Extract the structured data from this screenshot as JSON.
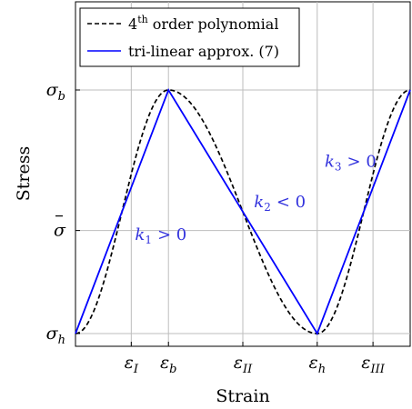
{
  "chart_data": {
    "type": "line",
    "xlabel": "Strain",
    "ylabel": "Stress",
    "grid": true,
    "legend_position": "top-left",
    "x_ticks": [
      {
        "x": 1.5,
        "label": "ε",
        "sub": "I"
      },
      {
        "x": 2.5,
        "label": "ε",
        "sub": "b"
      },
      {
        "x": 4.5,
        "label": "ε",
        "sub": "II"
      },
      {
        "x": 6.5,
        "label": "ε",
        "sub": "h"
      },
      {
        "x": 8.0,
        "label": "ε",
        "sub": "III"
      }
    ],
    "y_ticks": [
      {
        "y": 0,
        "label": "σ",
        "sub": "h",
        "bar": false
      },
      {
        "y": 1.1,
        "label": "σ",
        "sub": "",
        "bar": true
      },
      {
        "y": 2.6,
        "label": "σ",
        "sub": "b",
        "bar": false
      }
    ],
    "xlim": [
      0,
      9.0
    ],
    "ylim": [
      0,
      3.5
    ],
    "series": [
      {
        "name": "4th order polynomial",
        "name_parts": [
          "4",
          "th",
          " order polynomial"
        ],
        "style": "dashed",
        "color": "#000000",
        "x_range": [
          0,
          9.0
        ],
        "x_knots": [
          0,
          2.5,
          6.5,
          9.0
        ],
        "y_knots": [
          0,
          2.6,
          0,
          2.6
        ]
      },
      {
        "name": "tri-linear approx. (7)",
        "style": "solid",
        "color": "#0000ff",
        "x": [
          0,
          2.5,
          6.5,
          9.0
        ],
        "y": [
          0,
          2.6,
          0,
          2.6
        ]
      }
    ],
    "annotations": [
      {
        "text": "k",
        "sub": "1",
        "rel": "> 0",
        "x": 1.6,
        "y": 1.0
      },
      {
        "text": "k",
        "sub": "2",
        "rel": "< 0",
        "x": 4.8,
        "y": 1.35
      },
      {
        "text": "k",
        "sub": "3",
        "rel": "> 0",
        "x": 6.7,
        "y": 1.78
      }
    ]
  }
}
